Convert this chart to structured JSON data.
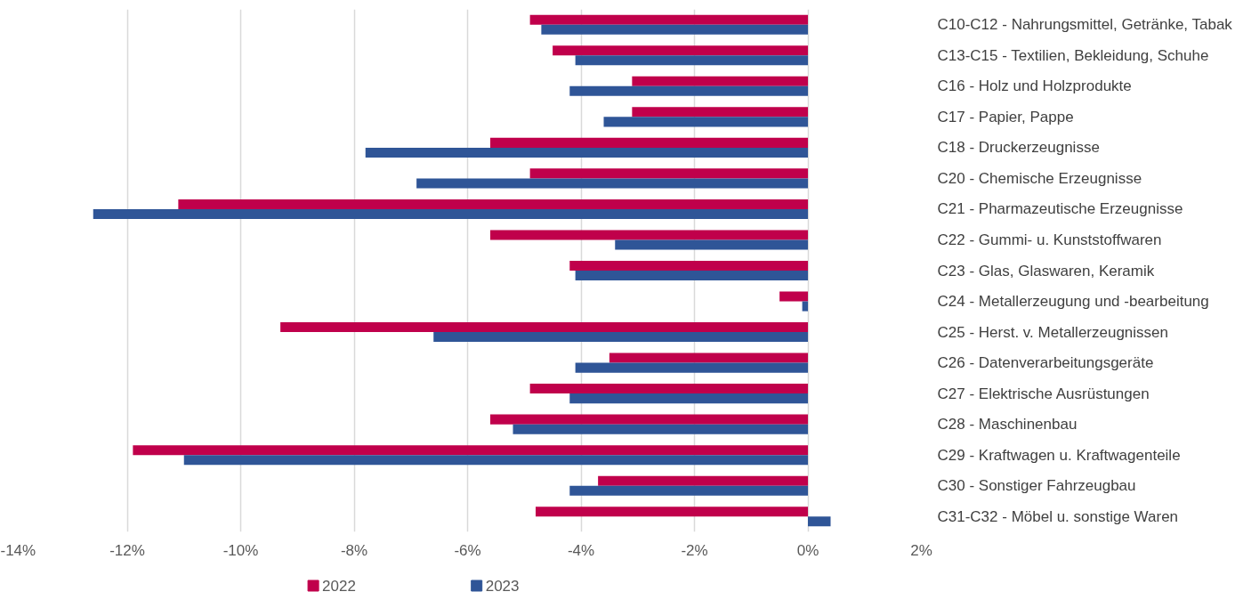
{
  "chart_data": {
    "type": "bar",
    "orientation": "horizontal",
    "categories": [
      "C10-C12 - Nahrungsmittel, Getränke, Tabak",
      "C13-C15 - Textilien, Bekleidung, Schuhe",
      "C16 - Holz und Holzprodukte",
      "C17 - Papier, Pappe",
      "C18 - Druckerzeugnisse",
      "C20 - Chemische Erzeugnisse",
      "C21 - Pharmazeutische Erzeugnisse",
      "C22 - Gummi- u. Kunststoffwaren",
      "C23 - Glas, Glaswaren, Keramik",
      "C24 - Metallerzeugung und -bearbeitung",
      "C25 - Herst. v. Metallerzeugnissen",
      "C26 - Datenverarbeitungsgeräte",
      "C27 - Elektrische Ausrüstungen",
      "C28 - Maschinenbau",
      "C29 - Kraftwagen u. Kraftwagenteile",
      "C30 - Sonstiger Fahrzeugbau",
      "C31-C32 - Möbel u. sonstige Waren"
    ],
    "series": [
      {
        "name": "2022",
        "color": "#c0004b",
        "values": [
          -4.9,
          -4.5,
          -3.1,
          -3.1,
          -5.6,
          -4.9,
          -11.1,
          -5.6,
          -4.2,
          -0.5,
          -9.3,
          -3.5,
          -4.9,
          -5.6,
          -11.9,
          -3.7,
          -4.8
        ]
      },
      {
        "name": "2023",
        "color": "#2f5597",
        "values": [
          -4.7,
          -4.1,
          -4.2,
          -3.6,
          -7.8,
          -6.9,
          -12.6,
          -3.4,
          -4.1,
          -0.1,
          -6.6,
          -4.1,
          -4.2,
          -5.2,
          -11.0,
          -4.2,
          0.4
        ]
      }
    ],
    "xlim": [
      -14,
      2
    ],
    "xticks": [
      {
        "value": -14,
        "label": "-14%"
      },
      {
        "value": -12,
        "label": "-12%"
      },
      {
        "value": -10,
        "label": "-10%"
      },
      {
        "value": -8,
        "label": "-8%"
      },
      {
        "value": -6,
        "label": "-6%"
      },
      {
        "value": -4,
        "label": "-4%"
      },
      {
        "value": -2,
        "label": "-2%"
      },
      {
        "value": 0,
        "label": "0%"
      },
      {
        "value": 2,
        "label": "2%"
      }
    ],
    "grid": "x",
    "legend": "bottom"
  }
}
